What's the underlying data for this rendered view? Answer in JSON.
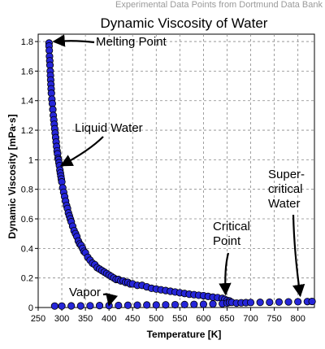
{
  "header": "Experimental Data Points from Dortmund Data Bank",
  "chart_data": {
    "type": "scatter",
    "title": "Dynamic Viscosity of Water",
    "xlabel": "Temperature [K]",
    "ylabel": "Dynamic Viscosity [mPa·s]",
    "xlim": [
      250,
      835
    ],
    "ylim": [
      0,
      1.85
    ],
    "x_ticks": [
      "250",
      "300",
      "350",
      "400",
      "450",
      "500",
      "550",
      "600",
      "650",
      "700",
      "750",
      "800"
    ],
    "y_ticks": [
      "0",
      "0.2",
      "0.4",
      "0.6",
      "0.8",
      "1",
      "1.2",
      "1.4",
      "1.6",
      "1.8"
    ],
    "x_tick_values": [
      250,
      300,
      350,
      400,
      450,
      500,
      550,
      600,
      650,
      700,
      750,
      800
    ],
    "y_tick_values": [
      0,
      0.2,
      0.4,
      0.6,
      0.8,
      1,
      1.2,
      1.4,
      1.6,
      1.8
    ],
    "grid": true,
    "marker_color": "#2626d9",
    "series": [
      {
        "points": [
          [
            273,
            1.79
          ],
          [
            273,
            1.77
          ],
          [
            273.5,
            1.74
          ],
          [
            274,
            1.7
          ],
          [
            274.5,
            1.67
          ],
          [
            275,
            1.64
          ],
          [
            275.5,
            1.6
          ],
          [
            276,
            1.57
          ],
          [
            276.5,
            1.54
          ],
          [
            277,
            1.51
          ],
          [
            277.5,
            1.48
          ],
          [
            278,
            1.45
          ],
          [
            279,
            1.41
          ],
          [
            280,
            1.38
          ],
          [
            281,
            1.34
          ],
          [
            282,
            1.3
          ],
          [
            283,
            1.27
          ],
          [
            284,
            1.24
          ],
          [
            285,
            1.21
          ],
          [
            286,
            1.18
          ],
          [
            287,
            1.15
          ],
          [
            288,
            1.12
          ],
          [
            289,
            1.09
          ],
          [
            290,
            1.06
          ],
          [
            291,
            1.04
          ],
          [
            292,
            1.01
          ],
          [
            293,
            1.0
          ],
          [
            294,
            0.98
          ],
          [
            295,
            0.96
          ],
          [
            296,
            0.93
          ],
          [
            297,
            0.91
          ],
          [
            298,
            0.89
          ],
          [
            299,
            0.87
          ],
          [
            300,
            0.85
          ],
          [
            302,
            0.81
          ],
          [
            304,
            0.78
          ],
          [
            306,
            0.75
          ],
          [
            308,
            0.72
          ],
          [
            310,
            0.69
          ],
          [
            312,
            0.67
          ],
          [
            314,
            0.64
          ],
          [
            316,
            0.62
          ],
          [
            318,
            0.6
          ],
          [
            320,
            0.58
          ],
          [
            323,
            0.55
          ],
          [
            326,
            0.52
          ],
          [
            329,
            0.5
          ],
          [
            332,
            0.48
          ],
          [
            335,
            0.45
          ],
          [
            338,
            0.43
          ],
          [
            341,
            0.42
          ],
          [
            344,
            0.4
          ],
          [
            347,
            0.38
          ],
          [
            350,
            0.37
          ],
          [
            355,
            0.34
          ],
          [
            360,
            0.32
          ],
          [
            365,
            0.3
          ],
          [
            370,
            0.29
          ],
          [
            375,
            0.27
          ],
          [
            380,
            0.26
          ],
          [
            385,
            0.25
          ],
          [
            390,
            0.24
          ],
          [
            395,
            0.23
          ],
          [
            400,
            0.22
          ],
          [
            405,
            0.21
          ],
          [
            410,
            0.2
          ],
          [
            415,
            0.19
          ],
          [
            420,
            0.19
          ],
          [
            425,
            0.18
          ],
          [
            430,
            0.18
          ],
          [
            435,
            0.17
          ],
          [
            440,
            0.17
          ],
          [
            445,
            0.16
          ],
          [
            450,
            0.16
          ],
          [
            460,
            0.15
          ],
          [
            470,
            0.15
          ],
          [
            480,
            0.14
          ],
          [
            490,
            0.13
          ],
          [
            500,
            0.125
          ],
          [
            510,
            0.12
          ],
          [
            520,
            0.115
          ],
          [
            530,
            0.11
          ],
          [
            540,
            0.105
          ],
          [
            550,
            0.1
          ],
          [
            560,
            0.095
          ],
          [
            570,
            0.09
          ],
          [
            580,
            0.087
          ],
          [
            590,
            0.083
          ],
          [
            600,
            0.08
          ],
          [
            610,
            0.075
          ],
          [
            620,
            0.07
          ],
          [
            630,
            0.067
          ],
          [
            640,
            0.062
          ],
          [
            645,
            0.055
          ],
          [
            650,
            0.048
          ],
          [
            655,
            0.045
          ],
          [
            285,
            0.01
          ],
          [
            300,
            0.01
          ],
          [
            320,
            0.011
          ],
          [
            340,
            0.011
          ],
          [
            360,
            0.012
          ],
          [
            380,
            0.013
          ],
          [
            400,
            0.013
          ],
          [
            420,
            0.014
          ],
          [
            440,
            0.015
          ],
          [
            460,
            0.016
          ],
          [
            480,
            0.017
          ],
          [
            500,
            0.017
          ],
          [
            520,
            0.018
          ],
          [
            540,
            0.019
          ],
          [
            560,
            0.02
          ],
          [
            580,
            0.021
          ],
          [
            600,
            0.022
          ],
          [
            620,
            0.024
          ],
          [
            640,
            0.026
          ],
          [
            650,
            0.03
          ],
          [
            655,
            0.035
          ],
          [
            660,
            0.035
          ],
          [
            670,
            0.03
          ],
          [
            680,
            0.032
          ],
          [
            690,
            0.033
          ],
          [
            700,
            0.034
          ],
          [
            720,
            0.035
          ],
          [
            740,
            0.036
          ],
          [
            760,
            0.037
          ],
          [
            780,
            0.038
          ],
          [
            800,
            0.039
          ],
          [
            820,
            0.04
          ],
          [
            830,
            0.041
          ]
        ]
      }
    ],
    "annotations": [
      {
        "lines": [
          "Melting Point"
        ],
        "target": [
          274,
          1.8
        ]
      },
      {
        "lines": [
          "Liquid Water"
        ],
        "target": [
          295,
          0.96
        ]
      },
      {
        "lines": [
          "Vapor"
        ],
        "target": [
          400,
          0.015
        ]
      },
      {
        "lines": [
          "Critical",
          "Point"
        ],
        "target": [
          647,
          0.05
        ]
      },
      {
        "lines": [
          "Super-",
          "critical",
          "Water"
        ],
        "target": [
          805,
          0.04
        ]
      }
    ]
  }
}
